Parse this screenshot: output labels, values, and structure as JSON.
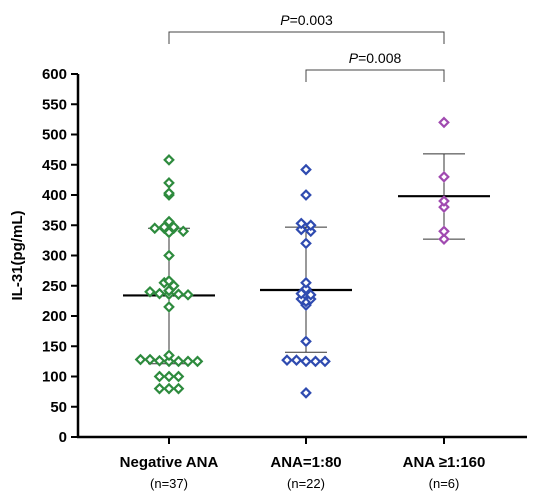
{
  "chart_data": {
    "type": "scatter",
    "ylabel": "IL-31(pg/mL)",
    "ylim": [
      0,
      600
    ],
    "yticks": [
      0,
      50,
      100,
      150,
      200,
      250,
      300,
      350,
      400,
      450,
      500,
      550,
      600
    ],
    "grid": false,
    "groups": [
      {
        "label": "Negative ANA",
        "n_label": "(n=37)",
        "color": "#2e8b3e",
        "mean": 234,
        "sd_upper": 345,
        "sd_lower": 121,
        "values": [
          458,
          420,
          403,
          400,
          356,
          347,
          347,
          345,
          345,
          345,
          340,
          338,
          300,
          258,
          255,
          250,
          242,
          240,
          237,
          236,
          236,
          235,
          215,
          135,
          128,
          128,
          126,
          125,
          125,
          125,
          125,
          100,
          100,
          100,
          80,
          80,
          80
        ]
      },
      {
        "label": "ANA=1:80",
        "n_label": "(n=22)",
        "color": "#2f4bb0",
        "mean": 243,
        "sd_upper": 347,
        "sd_lower": 140,
        "values": [
          442,
          400,
          353,
          350,
          343,
          340,
          320,
          255,
          245,
          237,
          235,
          228,
          228,
          224,
          218,
          158,
          127,
          127,
          125,
          125,
          125,
          73
        ]
      },
      {
        "label": "ANA ≥1:160",
        "n_label": "(n=6)",
        "color": "#a04ab0",
        "mean": 398,
        "sd_upper": 468,
        "sd_lower": 327,
        "values": [
          520,
          430,
          390,
          380,
          340,
          327
        ]
      }
    ],
    "comparisons": [
      {
        "from": 0,
        "to": 2,
        "p_prefix": "P",
        "p_value": "=0.003"
      },
      {
        "from": 1,
        "to": 2,
        "p_prefix": "P",
        "p_value": "=0.008"
      }
    ]
  }
}
